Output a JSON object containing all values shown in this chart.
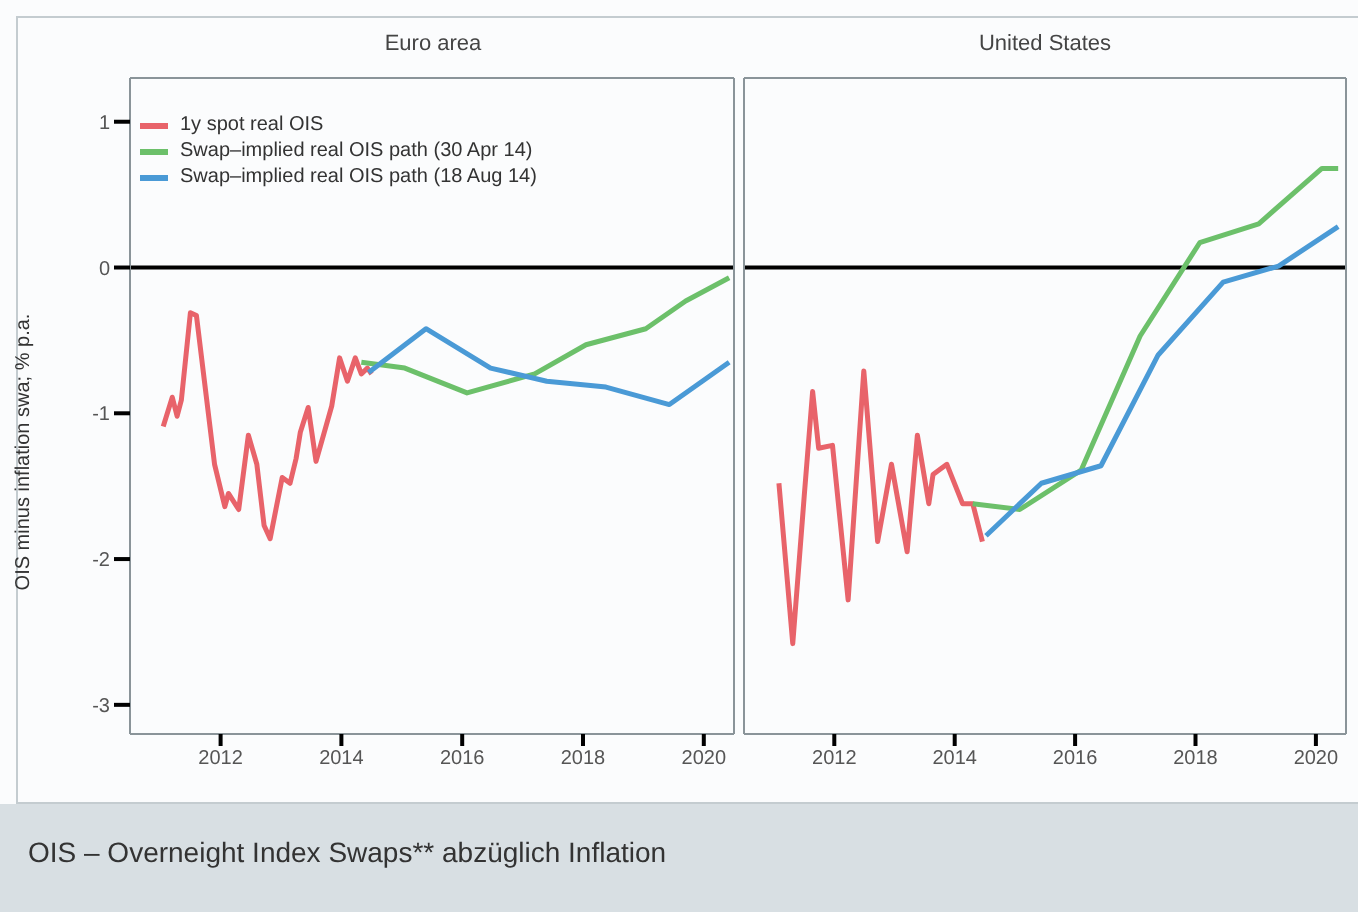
{
  "chart_data": [
    {
      "type": "line",
      "title": "Euro area",
      "ylabel": "OIS minus inflation swa; % p.a.",
      "xlim": [
        2010.5,
        2020.5
      ],
      "xticks": [
        2012,
        2014,
        2016,
        2018,
        2020
      ],
      "ylim": [
        -3.2,
        1.3
      ],
      "yticks": [
        -3,
        -2,
        -1,
        0,
        1
      ],
      "legend": "top left",
      "ref_lines": [
        {
          "axis": "y",
          "value": 0,
          "color": "#000000"
        }
      ],
      "series": [
        {
          "name": "1y spot real OIS",
          "color": "#e8636a",
          "x": [
            2011.05,
            2011.2,
            2011.28,
            2011.35,
            2011.5,
            2011.6,
            2011.9,
            2012.07,
            2012.13,
            2012.3,
            2012.46,
            2012.6,
            2012.72,
            2012.82,
            2013.02,
            2013.15,
            2013.25,
            2013.32,
            2013.45,
            2013.58,
            2013.84,
            2013.97,
            2014.1,
            2014.23,
            2014.33,
            2014.43,
            2014.5
          ],
          "values": [
            -1.09,
            -0.89,
            -1.02,
            -0.91,
            -0.31,
            -0.33,
            -1.35,
            -1.64,
            -1.55,
            -1.66,
            -1.15,
            -1.35,
            -1.77,
            -1.86,
            -1.44,
            -1.48,
            -1.31,
            -1.13,
            -0.96,
            -1.33,
            -0.95,
            -0.62,
            -0.78,
            -0.62,
            -0.73,
            -0.69,
            -0.73
          ]
        },
        {
          "name": "Swap–implied real OIS path (30 Apr 14)",
          "color": "#6cc06a",
          "x": [
            2014.33,
            2015.05,
            2016.08,
            2017.2,
            2018.05,
            2019.04,
            2019.7,
            2020.42
          ],
          "values": [
            -0.65,
            -0.69,
            -0.86,
            -0.73,
            -0.53,
            -0.42,
            -0.23,
            -0.07
          ]
        },
        {
          "name": "Swap–implied real OIS path (18 Aug 14)",
          "color": "#4a9ad6",
          "x": [
            2014.45,
            2015.4,
            2016.47,
            2017.4,
            2018.38,
            2019.43,
            2020.42
          ],
          "values": [
            -0.72,
            -0.42,
            -0.69,
            -0.78,
            -0.82,
            -0.94,
            -0.65
          ]
        }
      ],
      "annotations": [
        "OIS – Overneight Index Swaps** abzüglich Inflation"
      ]
    },
    {
      "type": "line",
      "title": "United States",
      "xlim": [
        2010.5,
        2020.5
      ],
      "xticks": [
        2012,
        2014,
        2016,
        2018,
        2020
      ],
      "ylim": [
        -3.2,
        1.3
      ],
      "tick_labels": "x",
      "ref_lines": [
        {
          "axis": "y",
          "value": 0,
          "color": "#000000"
        }
      ],
      "series": [
        {
          "color": "#e8636a",
          "x": [
            2011.08,
            2011.31,
            2011.5,
            2011.64,
            2011.74,
            2011.97,
            2012.23,
            2012.49,
            2012.72,
            2012.95,
            2013.21,
            2013.38,
            2013.57,
            2013.64,
            2013.87,
            2014.13,
            2014.3,
            2014.46
          ],
          "values": [
            -1.48,
            -2.58,
            -1.57,
            -0.85,
            -1.24,
            -1.22,
            -2.28,
            -0.71,
            -1.88,
            -1.35,
            -1.95,
            -1.15,
            -1.62,
            -1.42,
            -1.35,
            -1.62,
            -1.62,
            -1.88
          ]
        },
        {
          "color": "#6cc06a",
          "x": [
            2014.3,
            2015.08,
            2016.1,
            2017.08,
            2018.07,
            2019.05,
            2020.1,
            2020.37
          ],
          "values": [
            -1.62,
            -1.66,
            -1.39,
            -0.47,
            0.17,
            0.3,
            0.68,
            0.68
          ]
        },
        {
          "color": "#4a9ad6",
          "x": [
            2014.52,
            2015.44,
            2016.43,
            2017.38,
            2018.46,
            2019.38,
            2020.37
          ],
          "values": [
            -1.84,
            -1.48,
            -1.36,
            -0.6,
            -0.1,
            0.01,
            0.28
          ]
        }
      ]
    }
  ]
}
